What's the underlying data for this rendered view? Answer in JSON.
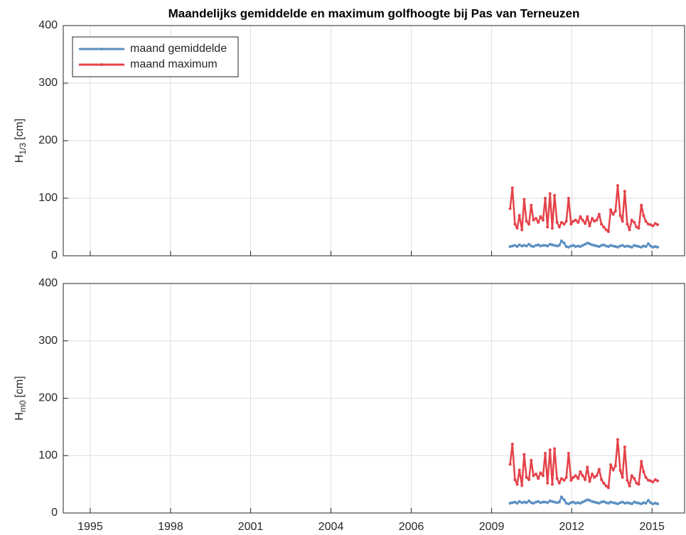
{
  "chart_data": [
    {
      "type": "line",
      "title": "Maandelijks gemiddelde en maximum golfhoogte bij Pas van Terneuzen",
      "ylabel": {
        "main": "H",
        "sub": "1/3",
        "unit": "[cm]"
      },
      "x": [
        2009.95,
        2010.03,
        2010.12,
        2010.2,
        2010.28,
        2010.37,
        2010.45,
        2010.53,
        2010.62,
        2010.7,
        2010.78,
        2010.87,
        2010.95,
        2011.03,
        2011.12,
        2011.2,
        2011.28,
        2011.37,
        2011.45,
        2011.53,
        2011.62,
        2011.7,
        2011.78,
        2011.87,
        2011.95,
        2012.03,
        2012.12,
        2012.2,
        2012.28,
        2012.37,
        2012.45,
        2012.53,
        2012.62,
        2012.7,
        2012.78,
        2012.87,
        2012.95,
        2013.03,
        2013.12,
        2013.2,
        2013.28,
        2013.37,
        2013.45,
        2013.53,
        2013.62,
        2013.7,
        2013.78,
        2013.87,
        2013.95,
        2014.03,
        2014.12,
        2014.2,
        2014.28,
        2014.37,
        2014.45,
        2014.53,
        2014.62,
        2014.7,
        2014.78,
        2014.87,
        2014.95,
        2015.03,
        2015.12,
        2015.2
      ],
      "series": [
        {
          "name": "maand gemiddelde",
          "color": "#5b8fc1",
          "values": [
            16,
            17,
            18,
            16,
            19,
            17,
            18,
            17,
            20,
            17,
            16,
            18,
            19,
            17,
            18,
            18,
            17,
            20,
            19,
            18,
            17,
            18,
            26,
            22,
            16,
            15,
            17,
            18,
            16,
            17,
            16,
            18,
            20,
            22,
            21,
            19,
            18,
            17,
            16,
            18,
            19,
            17,
            16,
            18,
            17,
            16,
            15,
            17,
            18,
            16,
            17,
            16,
            15,
            18,
            17,
            16,
            15,
            17,
            16,
            21,
            17,
            15,
            16,
            15
          ]
        },
        {
          "name": "maand maximum",
          "color": "#e5424a",
          "values": [
            82,
            118,
            55,
            48,
            70,
            45,
            98,
            60,
            55,
            88,
            62,
            65,
            58,
            68,
            62,
            100,
            50,
            108,
            48,
            105,
            58,
            50,
            58,
            55,
            60,
            100,
            55,
            60,
            62,
            58,
            68,
            62,
            56,
            68,
            52,
            65,
            60,
            62,
            72,
            55,
            50,
            45,
            42,
            80,
            72,
            78,
            122,
            70,
            60,
            112,
            55,
            45,
            62,
            58,
            50,
            48,
            88,
            70,
            60,
            55,
            54,
            52,
            56,
            54
          ]
        }
      ],
      "xlim": [
        1994.04,
        2016.16
      ],
      "xticks": [
        1995,
        1997.86,
        2000.71,
        2003.57,
        2006.43,
        2009.29,
        2012.14,
        2015
      ],
      "ylim": [
        0,
        400
      ],
      "yticks": [
        0,
        100,
        200,
        300,
        400
      ],
      "grid": true,
      "legend": "upper left"
    },
    {
      "type": "line",
      "ylabel": {
        "main": "H",
        "sub": "m0",
        "unit": "[cm]"
      },
      "x": [
        2009.95,
        2010.03,
        2010.12,
        2010.2,
        2010.28,
        2010.37,
        2010.45,
        2010.53,
        2010.62,
        2010.7,
        2010.78,
        2010.87,
        2010.95,
        2011.03,
        2011.12,
        2011.2,
        2011.28,
        2011.37,
        2011.45,
        2011.53,
        2011.62,
        2011.7,
        2011.78,
        2011.87,
        2011.95,
        2012.03,
        2012.12,
        2012.2,
        2012.28,
        2012.37,
        2012.45,
        2012.53,
        2012.62,
        2012.7,
        2012.78,
        2012.87,
        2012.95,
        2013.03,
        2013.12,
        2013.2,
        2013.28,
        2013.37,
        2013.45,
        2013.53,
        2013.62,
        2013.7,
        2013.78,
        2013.87,
        2013.95,
        2014.03,
        2014.12,
        2014.2,
        2014.28,
        2014.37,
        2014.45,
        2014.53,
        2014.62,
        2014.7,
        2014.78,
        2014.87,
        2014.95,
        2015.03,
        2015.12,
        2015.2
      ],
      "series": [
        {
          "color": "#5b8fc1",
          "values": [
            17,
            18,
            19,
            17,
            20,
            18,
            19,
            18,
            21,
            18,
            17,
            19,
            20,
            18,
            19,
            19,
            18,
            21,
            20,
            19,
            18,
            19,
            28,
            23,
            17,
            16,
            18,
            19,
            17,
            18,
            17,
            19,
            21,
            23,
            22,
            20,
            19,
            18,
            17,
            19,
            20,
            18,
            17,
            19,
            18,
            17,
            16,
            18,
            19,
            17,
            18,
            17,
            16,
            19,
            18,
            17,
            16,
            18,
            17,
            22,
            18,
            16,
            17,
            16
          ]
        },
        {
          "color": "#e5424a",
          "values": [
            85,
            120,
            58,
            50,
            75,
            48,
            102,
            62,
            58,
            92,
            65,
            68,
            60,
            70,
            65,
            104,
            52,
            110,
            50,
            112,
            60,
            52,
            60,
            57,
            62,
            104,
            57,
            62,
            65,
            60,
            72,
            65,
            58,
            80,
            55,
            68,
            62,
            65,
            76,
            58,
            52,
            47,
            44,
            84,
            75,
            82,
            128,
            74,
            62,
            115,
            57,
            47,
            65,
            60,
            52,
            50,
            90,
            72,
            62,
            57,
            56,
            54,
            58,
            56
          ]
        }
      ],
      "xlim": [
        1994.04,
        2016.16
      ],
      "xticks": [
        1995,
        {
          "value": 1997.86,
          "label": "1998"
        },
        {
          "value": 2000.71,
          "label": "2001"
        },
        {
          "value": 2003.57,
          "label": "2004"
        },
        {
          "value": 2006.43,
          "label": "2006"
        },
        {
          "value": 2009.29,
          "label": "2009"
        },
        {
          "value": 2012.14,
          "label": "2012"
        },
        2015
      ],
      "ylim": [
        0,
        400
      ],
      "yticks": [
        0,
        100,
        200,
        300,
        400
      ],
      "grid": true
    }
  ]
}
